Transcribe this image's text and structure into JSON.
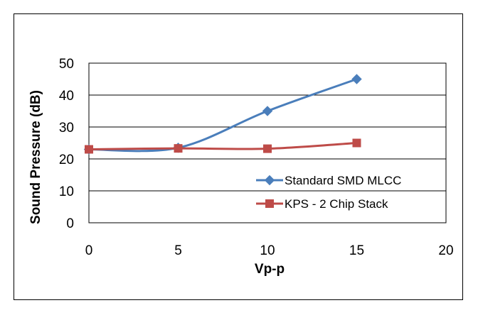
{
  "chart_data": {
    "type": "line",
    "title": "",
    "xlabel": "Vp-p",
    "ylabel": "Sound Pressure (dB)",
    "xlim": [
      0,
      20
    ],
    "ylim": [
      0,
      50
    ],
    "xticks": [
      0,
      5,
      10,
      15,
      20
    ],
    "yticks": [
      0,
      10,
      20,
      30,
      40,
      50
    ],
    "grid": "horizontal",
    "legend_position": "right",
    "smooth": true,
    "series": [
      {
        "name": "Standard SMD MLCC",
        "marker": "diamond",
        "color": "#4a7ebb",
        "x": [
          0,
          5,
          10,
          15
        ],
        "y": [
          23,
          23.5,
          35,
          45
        ]
      },
      {
        "name": "KPS - 2 Chip Stack",
        "marker": "square",
        "color": "#be4b48",
        "x": [
          0,
          5,
          10,
          15
        ],
        "y": [
          23,
          23.3,
          23.2,
          25
        ]
      }
    ]
  }
}
